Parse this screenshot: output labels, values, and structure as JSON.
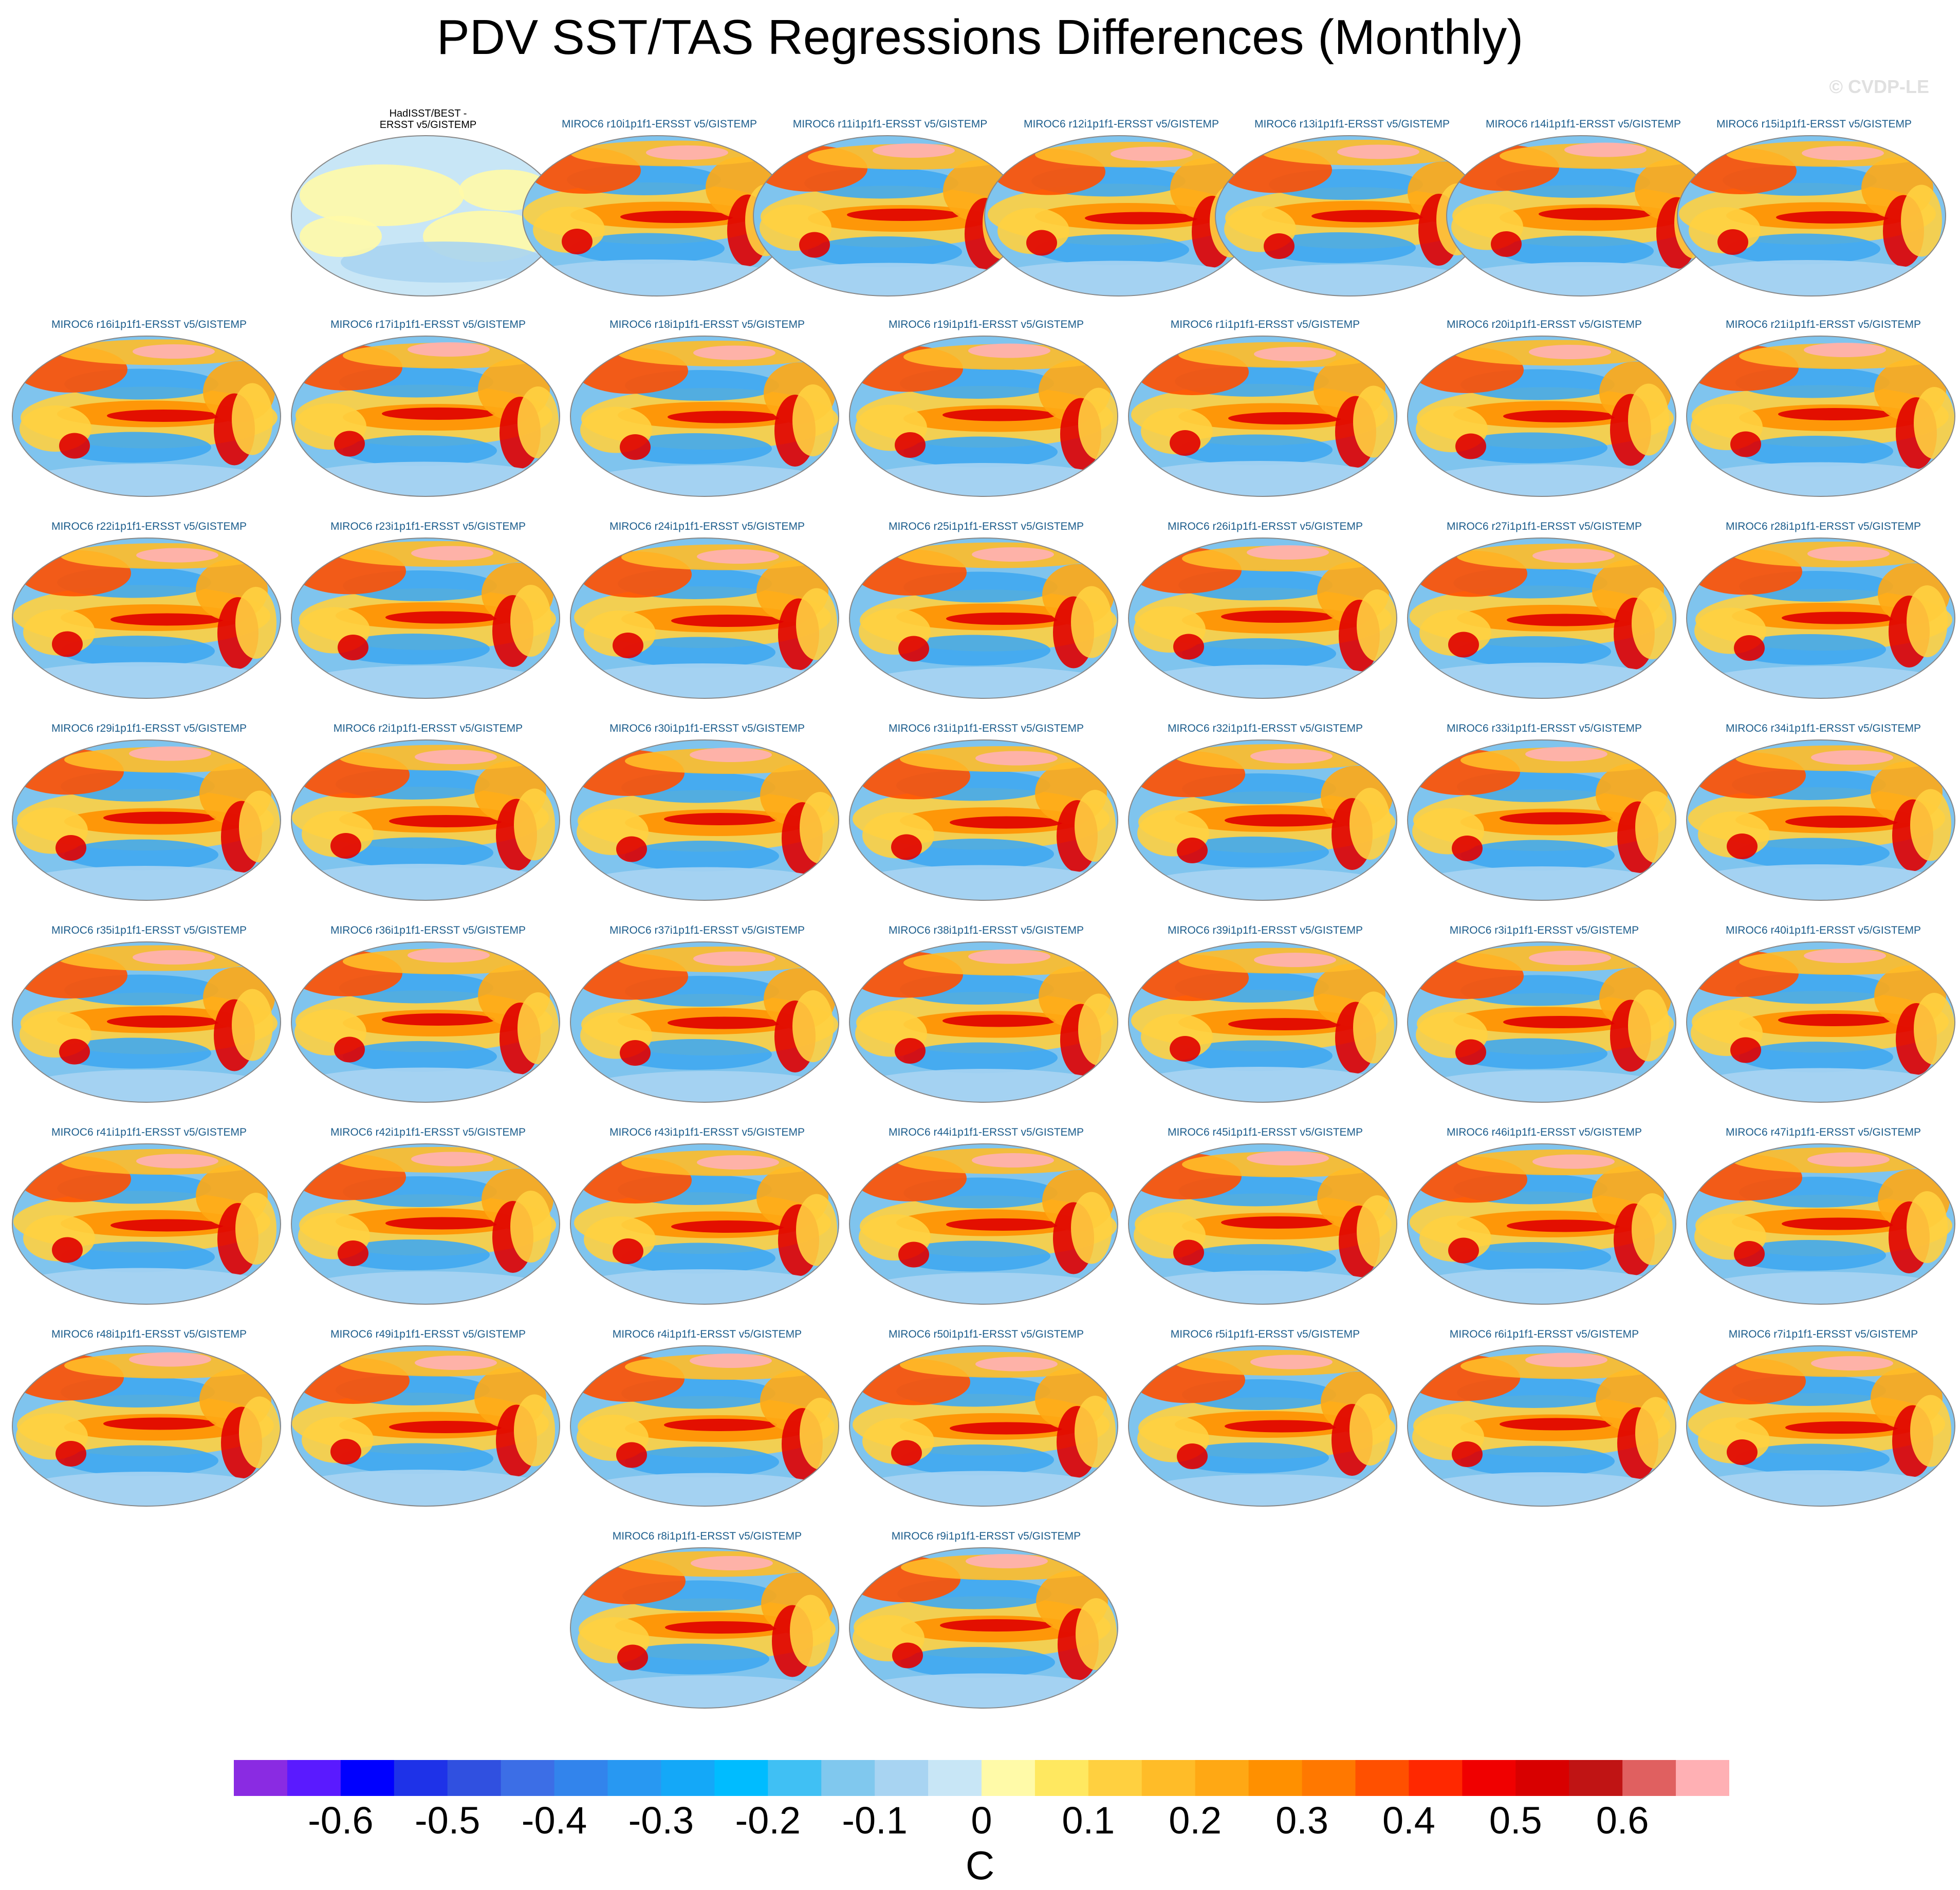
{
  "title": "PDV SST/TAS Regressions Differences (Monthly)",
  "copyright": "© CVDP-LE",
  "obs_panel": {
    "title_line1": "HadISST/BEST -",
    "title_line2": "ERSST v5/GISTEMP"
  },
  "panels": [
    "MIROC6 r10i1p1f1-ERSST v5/GISTEMP",
    "MIROC6 r11i1p1f1-ERSST v5/GISTEMP",
    "MIROC6 r12i1p1f1-ERSST v5/GISTEMP",
    "MIROC6 r13i1p1f1-ERSST v5/GISTEMP",
    "MIROC6 r14i1p1f1-ERSST v5/GISTEMP",
    "MIROC6 r15i1p1f1-ERSST v5/GISTEMP",
    "MIROC6 r16i1p1f1-ERSST v5/GISTEMP",
    "MIROC6 r17i1p1f1-ERSST v5/GISTEMP",
    "MIROC6 r18i1p1f1-ERSST v5/GISTEMP",
    "MIROC6 r19i1p1f1-ERSST v5/GISTEMP",
    "MIROC6 r1i1p1f1-ERSST v5/GISTEMP",
    "MIROC6 r20i1p1f1-ERSST v5/GISTEMP",
    "MIROC6 r21i1p1f1-ERSST v5/GISTEMP",
    "MIROC6 r22i1p1f1-ERSST v5/GISTEMP",
    "MIROC6 r23i1p1f1-ERSST v5/GISTEMP",
    "MIROC6 r24i1p1f1-ERSST v5/GISTEMP",
    "MIROC6 r25i1p1f1-ERSST v5/GISTEMP",
    "MIROC6 r26i1p1f1-ERSST v5/GISTEMP",
    "MIROC6 r27i1p1f1-ERSST v5/GISTEMP",
    "MIROC6 r28i1p1f1-ERSST v5/GISTEMP",
    "MIROC6 r29i1p1f1-ERSST v5/GISTEMP",
    "MIROC6 r2i1p1f1-ERSST v5/GISTEMP",
    "MIROC6 r30i1p1f1-ERSST v5/GISTEMP",
    "MIROC6 r31i1p1f1-ERSST v5/GISTEMP",
    "MIROC6 r32i1p1f1-ERSST v5/GISTEMP",
    "MIROC6 r33i1p1f1-ERSST v5/GISTEMP",
    "MIROC6 r34i1p1f1-ERSST v5/GISTEMP",
    "MIROC6 r35i1p1f1-ERSST v5/GISTEMP",
    "MIROC6 r36i1p1f1-ERSST v5/GISTEMP",
    "MIROC6 r37i1p1f1-ERSST v5/GISTEMP",
    "MIROC6 r38i1p1f1-ERSST v5/GISTEMP",
    "MIROC6 r39i1p1f1-ERSST v5/GISTEMP",
    "MIROC6 r3i1p1f1-ERSST v5/GISTEMP",
    "MIROC6 r40i1p1f1-ERSST v5/GISTEMP",
    "MIROC6 r41i1p1f1-ERSST v5/GISTEMP",
    "MIROC6 r42i1p1f1-ERSST v5/GISTEMP",
    "MIROC6 r43i1p1f1-ERSST v5/GISTEMP",
    "MIROC6 r44i1p1f1-ERSST v5/GISTEMP",
    "MIROC6 r45i1p1f1-ERSST v5/GISTEMP",
    "MIROC6 r46i1p1f1-ERSST v5/GISTEMP",
    "MIROC6 r47i1p1f1-ERSST v5/GISTEMP",
    "MIROC6 r48i1p1f1-ERSST v5/GISTEMP",
    "MIROC6 r49i1p1f1-ERSST v5/GISTEMP",
    "MIROC6 r4i1p1f1-ERSST v5/GISTEMP",
    "MIROC6 r50i1p1f1-ERSST v5/GISTEMP",
    "MIROC6 r5i1p1f1-ERSST v5/GISTEMP",
    "MIROC6 r6i1p1f1-ERSST v5/GISTEMP",
    "MIROC6 r7i1p1f1-ERSST v5/GISTEMP",
    "MIROC6 r8i1p1f1-ERSST v5/GISTEMP",
    "MIROC6 r9i1p1f1-ERSST v5/GISTEMP"
  ],
  "colorbar": {
    "units": "C",
    "colors": [
      "#8a2be2",
      "#5a1aff",
      "#0000ff",
      "#1e32e8",
      "#3050e0",
      "#3c6ee6",
      "#3284ec",
      "#2898f2",
      "#14a8f8",
      "#00bcff",
      "#40c0f4",
      "#80c8ee",
      "#a8d4f2",
      "#c8e6f6",
      "#fffaa8",
      "#ffe860",
      "#ffd040",
      "#ffbc28",
      "#ffa814",
      "#ff9000",
      "#ff7800",
      "#ff5000",
      "#ff2800",
      "#f00000",
      "#d80000",
      "#c01414",
      "#e06060",
      "#ffb0b4"
    ],
    "labels": [
      "-0.6",
      "-0.5",
      "-0.4",
      "-0.3",
      "-0.2",
      "-0.1",
      "0",
      "0.1",
      "0.2",
      "0.3",
      "0.4",
      "0.5",
      "0.6"
    ]
  }
}
